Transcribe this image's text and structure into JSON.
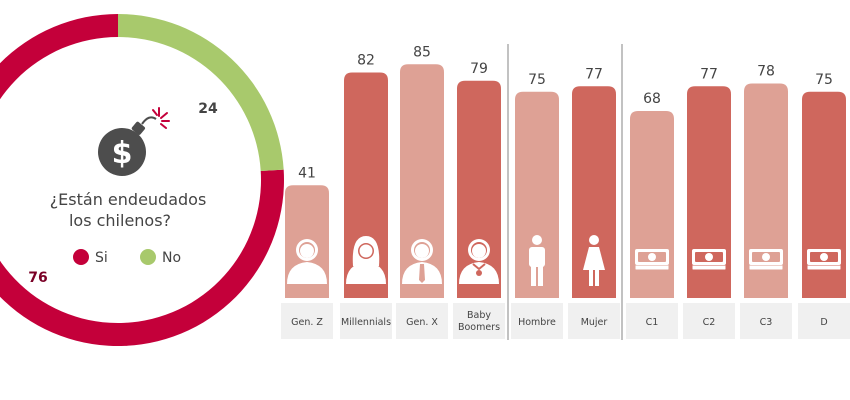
{
  "colors": {
    "si": "#c4003a",
    "no": "#a8c96c",
    "bar_dark": "#cf675d",
    "bar_light": "#dea195",
    "label_bg": "#f0f0f0",
    "divider": "#9a9a9a",
    "text": "#444444",
    "icon_dark": "#4d4d4d"
  },
  "donut": {
    "question_line1": "¿Están endeudados",
    "question_line2": "los chilenos?",
    "icon": "money-bomb-icon",
    "legend": [
      {
        "label": "Si",
        "color_key": "si"
      },
      {
        "label": "No",
        "color_key": "no"
      }
    ]
  },
  "chart_data": [
    {
      "type": "pie",
      "title": "¿Están endeudados los chilenos?",
      "labels": [
        "Si",
        "No"
      ],
      "values": [
        76,
        24
      ],
      "data_labels": [
        "76",
        "24"
      ],
      "style": "donut"
    },
    {
      "type": "bar",
      "categories": [
        "Gen. Z",
        "Millennials",
        "Gen. X",
        "Baby Boomers",
        "Hombre",
        "Mujer",
        "C1",
        "C2",
        "C3",
        "D"
      ],
      "values": [
        41,
        82,
        85,
        79,
        75,
        77,
        68,
        77,
        78,
        75
      ],
      "groups": [
        {
          "members": [
            "Gen. Z",
            "Millennials",
            "Gen. X",
            "Baby Boomers"
          ]
        },
        {
          "members": [
            "Hombre",
            "Mujer"
          ]
        },
        {
          "members": [
            "C1",
            "C2",
            "C3",
            "D"
          ]
        }
      ],
      "bar_shades": [
        "light",
        "dark",
        "light",
        "dark",
        "light",
        "dark",
        "light",
        "dark",
        "light",
        "dark"
      ],
      "icons": [
        "young-person-icon",
        "woman-person-icon",
        "man-tie-icon",
        "older-man-icon",
        "man-icon",
        "woman-icon",
        "money-stack-icon",
        "money-stack-icon",
        "money-stack-icon",
        "money-stack-icon"
      ],
      "ylim": [
        0,
        100
      ],
      "grid": false,
      "legend": "none"
    }
  ]
}
